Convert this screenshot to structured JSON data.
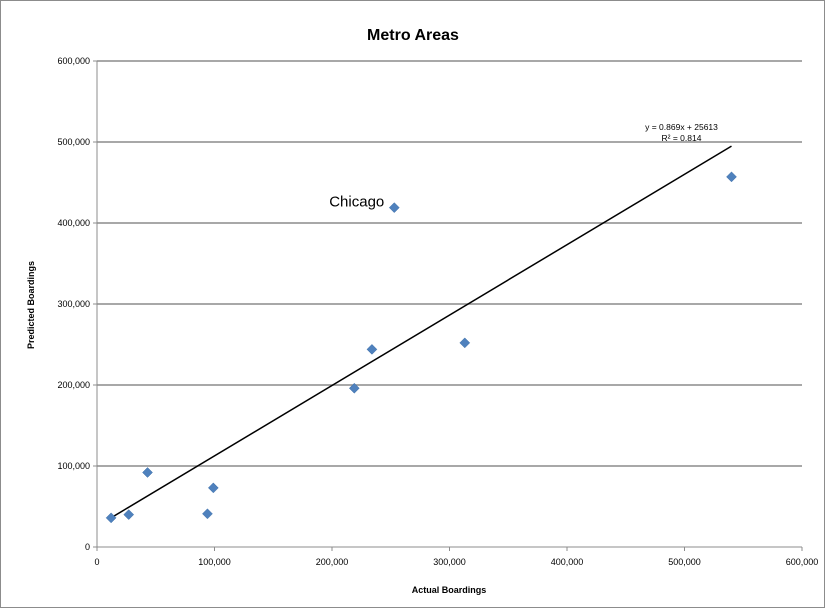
{
  "chart_data": {
    "type": "scatter",
    "title": "Metro Areas",
    "xlabel": "Actual Boardings",
    "ylabel": "Predicted Boardings",
    "xlim": [
      0,
      600000
    ],
    "ylim": [
      0,
      600000
    ],
    "x_ticks": [
      "0",
      "100,000",
      "200,000",
      "300,000",
      "400,000",
      "500,000",
      "600,000"
    ],
    "y_ticks": [
      "0",
      "100,000",
      "200,000",
      "300,000",
      "400,000",
      "500,000",
      "600,000"
    ],
    "grid": "horizontal",
    "colors": {
      "points": "#4f81bd",
      "trendline": "#000000",
      "grid": "#8c8c8c"
    },
    "series": [
      {
        "points": [
          {
            "x": 12000,
            "y": 36000
          },
          {
            "x": 27000,
            "y": 40000
          },
          {
            "x": 43000,
            "y": 92000
          },
          {
            "x": 94000,
            "y": 41000
          },
          {
            "x": 99000,
            "y": 73000
          },
          {
            "x": 219000,
            "y": 196000
          },
          {
            "x": 234000,
            "y": 244000
          },
          {
            "x": 253000,
            "y": 419000
          },
          {
            "x": 313000,
            "y": 252000
          },
          {
            "x": 540000,
            "y": 457000
          }
        ]
      }
    ],
    "trendline": {
      "slope": 0.869,
      "intercept": 25613,
      "x_range": [
        12000,
        540000
      ],
      "equation": "y = 0.869x + 25613",
      "r2_label": "R² = 0.814"
    },
    "annotations": [
      {
        "text": "Chicago",
        "x": 253000,
        "y": 419000
      }
    ]
  }
}
